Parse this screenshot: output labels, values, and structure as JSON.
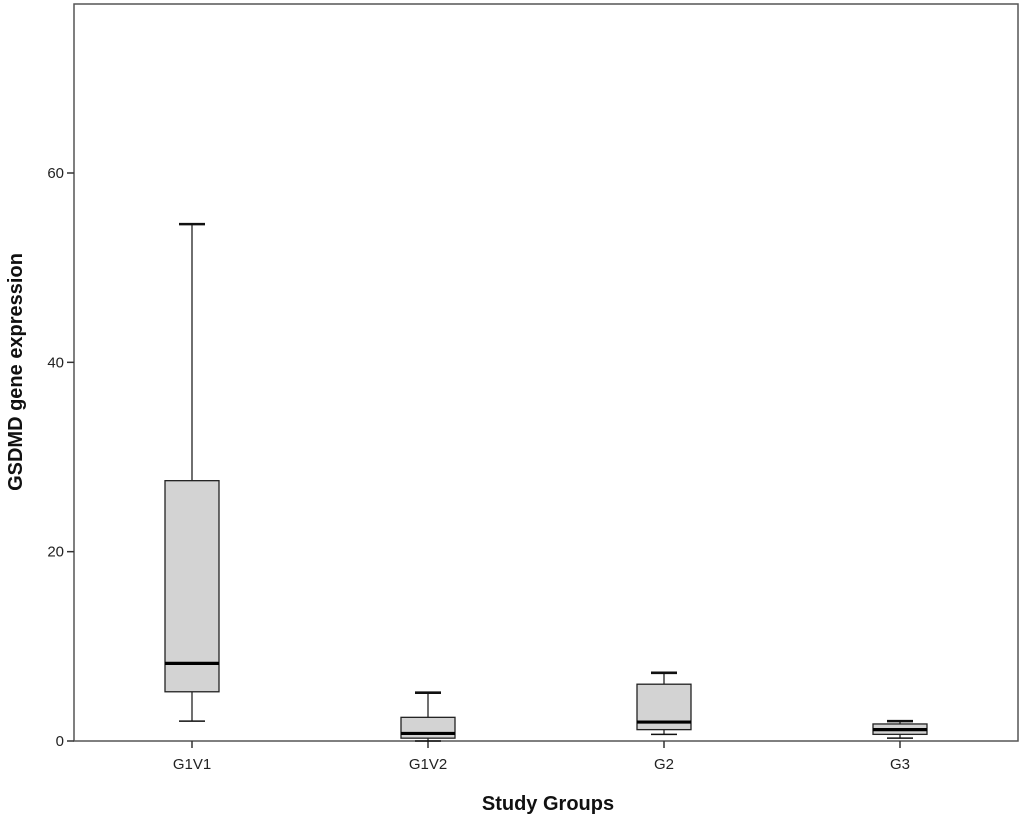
{
  "chart_data": {
    "type": "boxplot",
    "xlabel": "Study Groups",
    "ylabel": "GSDMD gene expression",
    "ylim": [
      0,
      78
    ],
    "yticks": [
      0,
      20,
      40,
      60
    ],
    "grid": false,
    "legend": "none",
    "box_fill": "#d3d3d3",
    "categories": [
      "G1V1",
      "G1V2",
      "G2",
      "G3"
    ],
    "boxes": [
      {
        "group": "G1V1",
        "min": 2.1,
        "q1": 5.2,
        "median": 8.2,
        "q3": 27.5,
        "max": 54.6
      },
      {
        "group": "G1V2",
        "min": 0.0,
        "q1": 0.3,
        "median": 0.8,
        "q3": 2.5,
        "max": 5.1
      },
      {
        "group": "G2",
        "min": 0.7,
        "q1": 1.2,
        "median": 2.0,
        "q3": 6.0,
        "max": 7.2
      },
      {
        "group": "G3",
        "min": 0.3,
        "q1": 0.7,
        "median": 1.2,
        "q3": 1.8,
        "max": 2.1
      }
    ]
  }
}
